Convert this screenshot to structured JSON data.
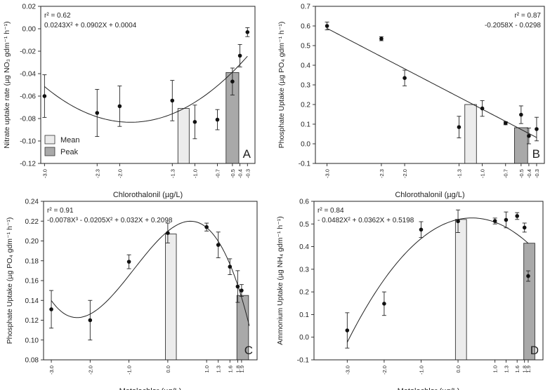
{
  "figure": {
    "background": "#ffffff",
    "axis_color": "#222222",
    "mean_bar_color": "#ececec",
    "peak_bar_color": "#a9a9a9",
    "point_color": "#111111"
  },
  "chart_data": [
    {
      "id": "A",
      "type": "scatter",
      "panel_letter": "A",
      "ylabel": "Nitrate uptake rate (µg NO₃ gdm⁻¹ h⁻¹)",
      "xlabel": "Chlorothalonil (µg/L)",
      "ylim": [
        -0.12,
        0.02
      ],
      "yticks": [
        -0.12,
        -0.1,
        -0.08,
        -0.06,
        -0.04,
        -0.02,
        0.0,
        0.02
      ],
      "ytick_decimals": 2,
      "xlim": [
        -3.05,
        -0.2
      ],
      "xticks": [
        -3.0,
        -2.3,
        -2.0,
        -1.3,
        -1.0,
        -0.7,
        -0.5,
        -0.4,
        -0.3
      ],
      "xtick_labels": [
        "-3.0",
        "-2.3",
        "-2.0",
        "-1.3",
        "-1.0",
        "-0.7",
        "-0.5",
        "-0.4",
        "-0.3"
      ],
      "points": [
        {
          "x": -3.0,
          "y": -0.06,
          "err": 0.019
        },
        {
          "x": -2.3,
          "y": -0.075,
          "err": 0.021
        },
        {
          "x": -2.0,
          "y": -0.069,
          "err": 0.018
        },
        {
          "x": -1.3,
          "y": -0.064,
          "err": 0.018
        },
        {
          "x": -1.0,
          "y": -0.083,
          "err": 0.015
        },
        {
          "x": -0.7,
          "y": -0.081,
          "err": 0.009
        },
        {
          "x": -0.5,
          "y": -0.047,
          "err": 0.012
        },
        {
          "x": -0.4,
          "y": -0.024,
          "err": 0.01
        },
        {
          "x": -0.3,
          "y": -0.003,
          "err": 0.004
        }
      ],
      "bars": [
        {
          "label": "Mean",
          "x": -1.15,
          "width": 0.15,
          "value": -0.071
        },
        {
          "label": "Peak",
          "x": -0.5,
          "width": 0.17,
          "value": -0.039
        }
      ],
      "fit": {
        "degree": 2,
        "coeffs": [
          0.0004,
          0.0902,
          0.0243
        ],
        "xrange": [
          -3.0,
          -0.3
        ]
      },
      "stats": {
        "r2": "r² = 0.62",
        "eq": "0.0243X² + 0.0902X + 0.0004",
        "pos": "top-left"
      },
      "legend": {
        "mean_label": "Mean",
        "peak_label": "Peak",
        "pos": "bottom-left"
      }
    },
    {
      "id": "B",
      "type": "scatter",
      "panel_letter": "B",
      "ylabel": "Phosphate Uptake (µg PO₄ gdm⁻¹ h⁻¹)",
      "xlabel": "Chlorothalonil (µg/L)",
      "ylim": [
        -0.1,
        0.7
      ],
      "yticks": [
        -0.1,
        0.0,
        0.1,
        0.2,
        0.3,
        0.4,
        0.5,
        0.6,
        0.7
      ],
      "ytick_decimals": 1,
      "xlim": [
        -3.15,
        -0.2
      ],
      "xticks": [
        -3.0,
        -2.3,
        -2.0,
        -1.3,
        -1.0,
        -0.7,
        -0.5,
        -0.4,
        -0.3
      ],
      "xtick_labels": [
        "-3.0",
        "-2.3",
        "-2.0",
        "-1.3",
        "-1.0",
        "-0.7",
        "-0.5",
        "-0.4",
        "-0.3"
      ],
      "points": [
        {
          "x": -3.0,
          "y": 0.6,
          "err": 0.02
        },
        {
          "x": -2.3,
          "y": 0.535,
          "err": 0.01
        },
        {
          "x": -2.0,
          "y": 0.335,
          "err": 0.04
        },
        {
          "x": -1.3,
          "y": 0.085,
          "err": 0.055
        },
        {
          "x": -1.0,
          "y": 0.18,
          "err": 0.04
        },
        {
          "x": -0.7,
          "y": 0.105,
          "err": 0.008
        },
        {
          "x": -0.5,
          "y": 0.148,
          "err": 0.045
        },
        {
          "x": -0.4,
          "y": 0.04,
          "err": 0.04
        },
        {
          "x": -0.3,
          "y": 0.075,
          "err": 0.06
        }
      ],
      "bars": [
        {
          "label": "Mean",
          "x": -1.15,
          "width": 0.15,
          "value": 0.2
        },
        {
          "label": "Peak",
          "x": -0.5,
          "width": 0.17,
          "value": 0.082
        }
      ],
      "fit": {
        "degree": 1,
        "coeffs": [
          -0.0298,
          -0.2058
        ],
        "xrange": [
          -3.0,
          -0.3
        ]
      },
      "stats": {
        "r2": "r² = 0.87",
        "eq": "-0.2058X - 0.0298",
        "pos": "top-right"
      }
    },
    {
      "id": "C",
      "type": "scatter",
      "panel_letter": "C",
      "ylabel": "Phosphate Uptake (µg PO₄ gdm⁻¹ h⁻¹)",
      "xlabel": "Metolachlor (µg/L)",
      "ylim": [
        0.08,
        0.24
      ],
      "yticks": [
        0.08,
        0.1,
        0.12,
        0.14,
        0.16,
        0.18,
        0.2,
        0.22,
        0.24
      ],
      "ytick_decimals": 2,
      "xlim": [
        -3.2,
        2.3
      ],
      "xticks": [
        -3.0,
        -2.0,
        -1.0,
        0.0,
        1.0,
        1.3,
        1.6,
        1.8,
        1.9
      ],
      "xtick_labels": [
        "-3.0",
        "-2.0",
        "-1.0",
        "0.0",
        "1.0",
        "1.3",
        "1.6",
        "1.8",
        "1.9"
      ],
      "points": [
        {
          "x": -3.0,
          "y": 0.131,
          "err": 0.019
        },
        {
          "x": -2.0,
          "y": 0.12,
          "err": 0.02
        },
        {
          "x": -1.0,
          "y": 0.179,
          "err": 0.007
        },
        {
          "x": 0.0,
          "y": 0.208,
          "err": 0.01
        },
        {
          "x": 1.0,
          "y": 0.214,
          "err": 0.004
        },
        {
          "x": 1.3,
          "y": 0.196,
          "err": 0.013
        },
        {
          "x": 1.6,
          "y": 0.174,
          "err": 0.008
        },
        {
          "x": 1.8,
          "y": 0.154,
          "err": 0.016
        },
        {
          "x": 1.9,
          "y": 0.15,
          "err": 0.006
        }
      ],
      "bars": [
        {
          "label": "Mean",
          "x": 0.08,
          "width": 0.28,
          "value": 0.207
        },
        {
          "label": "Peak",
          "x": 1.93,
          "width": 0.3,
          "value": 0.145
        }
      ],
      "fit": {
        "degree": 3,
        "coeffs": [
          0.2098,
          0.032,
          -0.0205,
          -0.0078
        ],
        "xrange": [
          -3.0,
          2.1
        ]
      },
      "stats": {
        "r2": "r² = 0.91",
        "eq": "-0.0078X³ - 0.0205X² + 0.032X + 0.2098",
        "pos": "top-left"
      }
    },
    {
      "id": "D",
      "type": "scatter",
      "panel_letter": "D",
      "ylabel": "Ammonium Uptake (µg NH₄ gdm⁻¹ h⁻¹)",
      "xlabel": "Metolachlor (µg/L)",
      "ylim": [
        -0.1,
        0.6
      ],
      "yticks": [
        -0.1,
        0.0,
        0.1,
        0.2,
        0.3,
        0.4,
        0.5,
        0.6
      ],
      "ytick_decimals": 1,
      "xlim": [
        -3.9,
        2.3
      ],
      "xticks": [
        -3.0,
        -2.0,
        -1.0,
        0.0,
        1.0,
        1.3,
        1.6,
        1.8,
        1.9
      ],
      "xtick_labels": [
        "-3.0",
        "-2.0",
        "-1.0",
        "0.0",
        "1.0",
        "1.3",
        "1.6",
        "1.8",
        "1.9"
      ],
      "points": [
        {
          "x": -3.0,
          "y": 0.03,
          "err": 0.078
        },
        {
          "x": -2.0,
          "y": 0.148,
          "err": 0.052
        },
        {
          "x": -1.0,
          "y": 0.475,
          "err": 0.035
        },
        {
          "x": 0.0,
          "y": 0.512,
          "err": 0.05
        },
        {
          "x": 1.0,
          "y": 0.513,
          "err": 0.013
        },
        {
          "x": 1.3,
          "y": 0.518,
          "err": 0.035
        },
        {
          "x": 1.6,
          "y": 0.535,
          "err": 0.015
        },
        {
          "x": 1.8,
          "y": 0.484,
          "err": 0.02
        },
        {
          "x": 1.9,
          "y": 0.27,
          "err": 0.023
        }
      ],
      "bars": [
        {
          "label": "Mean",
          "x": 0.08,
          "width": 0.3,
          "value": 0.52
        },
        {
          "label": "Peak",
          "x": 1.93,
          "width": 0.3,
          "value": 0.415
        }
      ],
      "fit": {
        "degree": 2,
        "coeffs": [
          0.5198,
          0.0362,
          -0.0482
        ],
        "xrange": [
          -3.0,
          1.9
        ]
      },
      "stats": {
        "r2": "r² = 0.84",
        "eq": "- 0.0482X² + 0.0362X + 0.5198",
        "pos": "top-left"
      }
    }
  ]
}
